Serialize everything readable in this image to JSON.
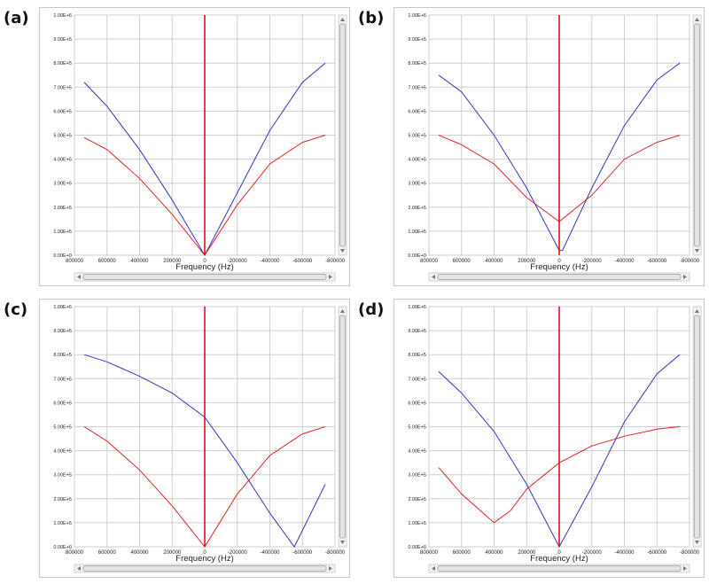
{
  "chart_data": [
    {
      "panel_label": "(a)",
      "type": "line",
      "xlabel": "Frequency (Hz)",
      "xlim": [
        800000,
        -800000
      ],
      "ylim": [
        0,
        1000000
      ],
      "grid": true,
      "x_ticks": [
        "800000",
        "600000",
        "400000",
        "200000",
        "0",
        "-200000",
        "-400000",
        "-600000",
        "-800000"
      ],
      "y_ticks": [
        "0.00E+0",
        "1.00E+5",
        "2.00E+5",
        "3.00E+5",
        "4.00E+5",
        "5.00E+5",
        "6.00E+5",
        "7.00E+5",
        "8.00E+5",
        "9.00E+5",
        "1.00E+6"
      ],
      "marker_x": 0,
      "marker_color": "#e01010",
      "series": [
        {
          "color": "#3333cc",
          "x": [
            740000,
            600000,
            400000,
            200000,
            0,
            -200000,
            -400000,
            -600000,
            -740000
          ],
          "values": [
            720000,
            620000,
            440000,
            230000,
            0,
            260000,
            520000,
            720000,
            800000
          ]
        },
        {
          "color": "#dd2222",
          "x": [
            740000,
            600000,
            400000,
            200000,
            0,
            -200000,
            -400000,
            -600000,
            -740000
          ],
          "values": [
            490000,
            440000,
            320000,
            170000,
            0,
            210000,
            380000,
            470000,
            500000
          ]
        }
      ]
    },
    {
      "panel_label": "(b)",
      "type": "line",
      "xlabel": "Frequency (Hz)",
      "xlim": [
        800000,
        -800000
      ],
      "ylim": [
        0,
        1000000
      ],
      "grid": true,
      "x_ticks": [
        "800000",
        "600000",
        "400000",
        "200000",
        "0",
        "-200000",
        "-400000",
        "-600000",
        "-800000"
      ],
      "y_ticks": [
        "0.00E+0",
        "1.00E+5",
        "2.00E+5",
        "3.00E+5",
        "4.00E+5",
        "5.00E+5",
        "6.00E+5",
        "7.00E+5",
        "8.00E+5",
        "9.00E+5",
        "1.00E+6"
      ],
      "marker_x": 0,
      "marker_color": "#e01010",
      "series": [
        {
          "color": "#3333cc",
          "x": [
            740000,
            600000,
            400000,
            200000,
            0,
            -20000,
            -200000,
            -400000,
            -600000,
            -740000
          ],
          "values": [
            750000,
            680000,
            500000,
            280000,
            20000,
            20000,
            280000,
            540000,
            730000,
            800000
          ]
        },
        {
          "color": "#dd2222",
          "x": [
            740000,
            600000,
            400000,
            200000,
            0,
            -200000,
            -400000,
            -600000,
            -740000
          ],
          "values": [
            500000,
            460000,
            380000,
            240000,
            140000,
            250000,
            400000,
            470000,
            500000
          ]
        }
      ]
    },
    {
      "panel_label": "(c)",
      "type": "line",
      "xlabel": "Frequency (Hz)",
      "xlim": [
        800000,
        -800000
      ],
      "ylim": [
        0,
        1000000
      ],
      "grid": true,
      "x_ticks": [
        "800000",
        "600000",
        "400000",
        "200000",
        "0",
        "-200000",
        "-400000",
        "-600000",
        "-800000"
      ],
      "y_ticks": [
        "0.00E+0",
        "1.00E+5",
        "2.00E+5",
        "3.00E+5",
        "4.00E+5",
        "5.00E+5",
        "6.00E+5",
        "7.00E+5",
        "8.00E+5",
        "9.00E+5",
        "1.00E+6"
      ],
      "marker_x": 0,
      "marker_color": "#e01010",
      "series": [
        {
          "color": "#3333cc",
          "x": [
            740000,
            600000,
            400000,
            200000,
            0,
            -200000,
            -400000,
            -550000,
            -740000
          ],
          "values": [
            800000,
            770000,
            710000,
            640000,
            540000,
            350000,
            140000,
            0,
            260000
          ]
        },
        {
          "color": "#dd2222",
          "x": [
            740000,
            600000,
            400000,
            200000,
            0,
            -200000,
            -400000,
            -600000,
            -740000
          ],
          "values": [
            500000,
            440000,
            320000,
            170000,
            0,
            220000,
            380000,
            470000,
            500000
          ]
        }
      ]
    },
    {
      "panel_label": "(d)",
      "type": "line",
      "xlabel": "Frequency (Hz)",
      "xlim": [
        800000,
        -800000
      ],
      "ylim": [
        0,
        1000000
      ],
      "grid": true,
      "x_ticks": [
        "800000",
        "600000",
        "400000",
        "200000",
        "0",
        "-200000",
        "-400000",
        "-600000",
        "-800000"
      ],
      "y_ticks": [
        "0.00E+0",
        "1.00E+5",
        "2.00E+5",
        "3.00E+5",
        "4.00E+5",
        "5.00E+5",
        "6.00E+5",
        "7.00E+5",
        "8.00E+5",
        "9.00E+5",
        "1.00E+6"
      ],
      "marker_x": 0,
      "marker_color": "#e01010",
      "series": [
        {
          "color": "#3333cc",
          "x": [
            740000,
            600000,
            400000,
            200000,
            0,
            -200000,
            -400000,
            -600000,
            -740000
          ],
          "values": [
            730000,
            640000,
            480000,
            260000,
            0,
            250000,
            520000,
            720000,
            800000
          ]
        },
        {
          "color": "#dd2222",
          "x": [
            740000,
            600000,
            400000,
            300000,
            200000,
            0,
            -200000,
            -400000,
            -600000,
            -740000
          ],
          "values": [
            330000,
            220000,
            100000,
            150000,
            240000,
            350000,
            420000,
            460000,
            490000,
            500000
          ]
        }
      ]
    }
  ]
}
